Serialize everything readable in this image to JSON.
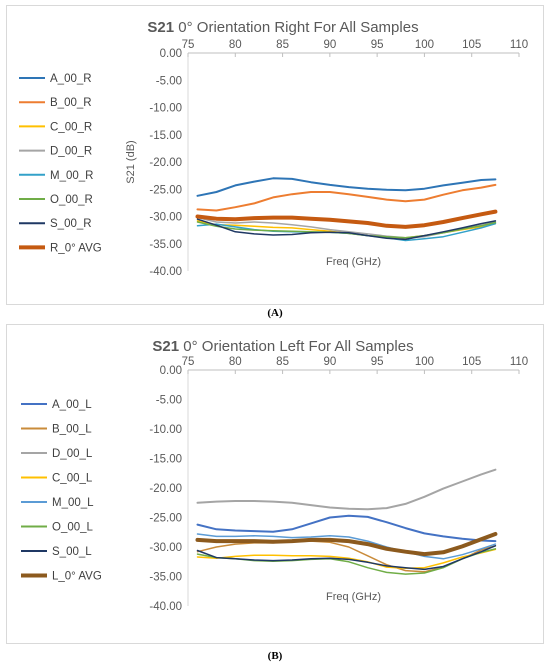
{
  "chart_data": [
    {
      "type": "line",
      "title_bold": "S21",
      "title_rest": " 0° Orientation Right For All Samples",
      "xlabel": "Freq (GHz)",
      "ylabel": "S21 (dB)",
      "xlim": [
        75,
        110
      ],
      "ylim": [
        -40,
        0
      ],
      "xticks": [
        "75",
        "80",
        "85",
        "90",
        "95",
        "100",
        "105",
        "110"
      ],
      "yticks": [
        "0.00",
        "-5.00",
        "-10.00",
        "-15.00",
        "-20.00",
        "-25.00",
        "-30.00",
        "-35.00",
        "-40.00"
      ],
      "grid": false,
      "legend_position": "left",
      "caption": "(A)",
      "series": [
        {
          "name": "A_00_R",
          "color": "#2e75b6",
          "width": 2,
          "x": [
            76,
            78,
            80,
            82,
            84,
            86,
            88,
            90,
            92,
            94,
            96,
            98,
            100,
            102,
            104,
            106,
            107.5
          ],
          "values": [
            -26.2,
            -25.5,
            -24.3,
            -23.6,
            -23.0,
            -23.1,
            -23.7,
            -24.2,
            -24.6,
            -24.9,
            -25.1,
            -25.2,
            -24.9,
            -24.3,
            -23.8,
            -23.3,
            -23.2
          ]
        },
        {
          "name": "B_00_R",
          "color": "#ed7d31",
          "width": 2,
          "x": [
            76,
            78,
            80,
            82,
            84,
            86,
            88,
            90,
            92,
            94,
            96,
            98,
            100,
            102,
            104,
            106,
            107.5
          ],
          "values": [
            -28.7,
            -28.9,
            -28.3,
            -27.6,
            -26.5,
            -25.9,
            -25.5,
            -25.5,
            -25.9,
            -26.4,
            -26.9,
            -27.2,
            -26.9,
            -26.0,
            -25.2,
            -24.7,
            -24.2
          ]
        },
        {
          "name": "C_00_R",
          "color": "#ffc000",
          "width": 1.5,
          "x": [
            76,
            78,
            80,
            82,
            84,
            86,
            88,
            90,
            92,
            94,
            96,
            98,
            100,
            102,
            104,
            106,
            107.5
          ],
          "values": [
            -30.8,
            -31.5,
            -31.6,
            -31.8,
            -32.0,
            -32.1,
            -32.4,
            -32.7,
            -33.1,
            -33.5,
            -33.8,
            -33.9,
            -33.5,
            -33.0,
            -32.4,
            -31.9,
            -31.3
          ]
        },
        {
          "name": "D_00_R",
          "color": "#a5a5a5",
          "width": 1.5,
          "x": [
            76,
            78,
            80,
            82,
            84,
            86,
            88,
            90,
            92,
            94,
            96,
            98,
            100,
            102,
            104,
            106,
            107.5
          ],
          "values": [
            -30.2,
            -31.0,
            -31.2,
            -31.0,
            -31.2,
            -31.5,
            -31.9,
            -32.4,
            -32.8,
            -33.2,
            -33.6,
            -33.9,
            -33.7,
            -33.0,
            -32.3,
            -31.6,
            -31.0
          ]
        },
        {
          "name": "M_00_R",
          "color": "#33a1c9",
          "width": 1.5,
          "x": [
            76,
            78,
            80,
            82,
            84,
            86,
            88,
            90,
            92,
            94,
            96,
            98,
            100,
            102,
            104,
            106,
            107.5
          ],
          "values": [
            -31.7,
            -31.4,
            -31.9,
            -32.4,
            -32.7,
            -32.8,
            -32.9,
            -32.9,
            -33.1,
            -33.5,
            -33.9,
            -34.4,
            -34.1,
            -33.7,
            -32.9,
            -32.1,
            -31.3
          ]
        },
        {
          "name": "O_00_R",
          "color": "#70ad47",
          "width": 1.5,
          "x": [
            76,
            78,
            80,
            82,
            84,
            86,
            88,
            90,
            92,
            94,
            96,
            98,
            100,
            102,
            104,
            106,
            107.5
          ],
          "values": [
            -31.0,
            -31.8,
            -32.3,
            -32.5,
            -32.6,
            -32.7,
            -32.8,
            -32.9,
            -33.1,
            -33.5,
            -33.7,
            -33.9,
            -33.5,
            -33.0,
            -32.3,
            -31.7,
            -31.1
          ]
        },
        {
          "name": "S_00_R",
          "color": "#1f3864",
          "width": 1.5,
          "x": [
            76,
            78,
            80,
            82,
            84,
            86,
            88,
            90,
            92,
            94,
            96,
            98,
            100,
            102,
            104,
            106,
            107.5
          ],
          "values": [
            -30.5,
            -31.6,
            -32.8,
            -33.2,
            -33.4,
            -33.3,
            -33.0,
            -32.9,
            -33.0,
            -33.5,
            -34.0,
            -34.2,
            -33.5,
            -32.8,
            -32.1,
            -31.3,
            -30.8
          ]
        },
        {
          "name": "R_0° AVG",
          "color": "#c55a11",
          "width": 4,
          "x": [
            76,
            78,
            80,
            82,
            84,
            86,
            88,
            90,
            92,
            94,
            96,
            98,
            100,
            102,
            104,
            106,
            107.5
          ],
          "values": [
            -30.0,
            -30.4,
            -30.5,
            -30.3,
            -30.2,
            -30.2,
            -30.4,
            -30.6,
            -30.9,
            -31.2,
            -31.7,
            -31.9,
            -31.6,
            -31.0,
            -30.3,
            -29.6,
            -29.1
          ]
        }
      ]
    },
    {
      "type": "line",
      "title_bold": "S21",
      "title_rest": " 0° Orientation Left For All Samples",
      "xlabel": "Freq (GHz)",
      "ylabel": "",
      "xlim": [
        75,
        110
      ],
      "ylim": [
        -40,
        0
      ],
      "xticks": [
        "75",
        "80",
        "85",
        "90",
        "95",
        "100",
        "105",
        "110"
      ],
      "yticks": [
        "0.00",
        "-5.00",
        "-10.00",
        "-15.00",
        "-20.00",
        "-25.00",
        "-30.00",
        "-35.00",
        "-40.00"
      ],
      "grid": false,
      "legend_position": "left",
      "caption": "(B)",
      "series": [
        {
          "name": "A_00_L",
          "color": "#4472c4",
          "width": 2,
          "x": [
            76,
            78,
            80,
            82,
            84,
            86,
            88,
            90,
            92,
            94,
            96,
            98,
            100,
            102,
            104,
            106,
            107.5
          ],
          "values": [
            -26.2,
            -27.0,
            -27.2,
            -27.3,
            -27.4,
            -27.0,
            -26.0,
            -25.0,
            -24.7,
            -24.9,
            -25.8,
            -26.8,
            -27.7,
            -28.2,
            -28.6,
            -28.9,
            -29.0
          ]
        },
        {
          "name": "B_00_L",
          "color": "#c98b3a",
          "width": 1.5,
          "x": [
            76,
            78,
            80,
            82,
            84,
            86,
            88,
            90,
            92,
            94,
            96,
            98,
            100,
            102,
            104,
            106,
            107.5
          ],
          "values": [
            -30.8,
            -30.0,
            -29.5,
            -29.3,
            -29.3,
            -29.1,
            -29.0,
            -29.2,
            -30.0,
            -31.5,
            -33.0,
            -34.0,
            -34.2,
            -33.4,
            -32.0,
            -30.5,
            -29.8
          ]
        },
        {
          "name": "D_00_L",
          "color": "#a5a5a5",
          "width": 2,
          "x": [
            76,
            78,
            80,
            82,
            84,
            86,
            88,
            90,
            92,
            94,
            96,
            98,
            100,
            102,
            104,
            106,
            107.5
          ],
          "values": [
            -22.5,
            -22.3,
            -22.2,
            -22.2,
            -22.3,
            -22.5,
            -22.9,
            -23.3,
            -23.5,
            -23.6,
            -23.4,
            -22.7,
            -21.5,
            -20.1,
            -18.9,
            -17.7,
            -16.9
          ]
        },
        {
          "name": "C_00_L",
          "color": "#ffc000",
          "width": 1.5,
          "x": [
            76,
            78,
            80,
            82,
            84,
            86,
            88,
            90,
            92,
            94,
            96,
            98,
            100,
            102,
            104,
            106,
            107.5
          ],
          "values": [
            -31.7,
            -31.9,
            -31.6,
            -31.4,
            -31.4,
            -31.5,
            -31.5,
            -31.6,
            -31.9,
            -32.5,
            -33.4,
            -33.6,
            -33.5,
            -32.7,
            -31.7,
            -31.0,
            -30.4
          ]
        },
        {
          "name": "M_00_L",
          "color": "#5b9bd5",
          "width": 1.5,
          "x": [
            76,
            78,
            80,
            82,
            84,
            86,
            88,
            90,
            92,
            94,
            96,
            98,
            100,
            102,
            104,
            106,
            107.5
          ],
          "values": [
            -27.8,
            -28.2,
            -28.2,
            -28.1,
            -28.2,
            -28.4,
            -28.3,
            -28.1,
            -28.3,
            -29.0,
            -30.0,
            -30.8,
            -31.6,
            -32.0,
            -31.3,
            -30.3,
            -29.5
          ]
        },
        {
          "name": "O_00_L",
          "color": "#70ad47",
          "width": 1.5,
          "x": [
            76,
            78,
            80,
            82,
            84,
            86,
            88,
            90,
            92,
            94,
            96,
            98,
            100,
            102,
            104,
            106,
            107.5
          ],
          "values": [
            -31.2,
            -31.8,
            -32.0,
            -32.3,
            -32.4,
            -32.3,
            -32.1,
            -32.0,
            -32.5,
            -33.5,
            -34.3,
            -34.6,
            -34.4,
            -33.5,
            -32.0,
            -30.9,
            -30.3
          ]
        },
        {
          "name": "S_00_L",
          "color": "#1f3864",
          "width": 1.5,
          "x": [
            76,
            78,
            80,
            82,
            84,
            86,
            88,
            90,
            92,
            94,
            96,
            98,
            100,
            102,
            104,
            106,
            107.5
          ],
          "values": [
            -30.6,
            -31.8,
            -32.0,
            -32.2,
            -32.3,
            -32.2,
            -32.0,
            -31.9,
            -32.1,
            -32.6,
            -33.2,
            -33.5,
            -33.8,
            -33.3,
            -32.0,
            -30.8,
            -29.8
          ]
        },
        {
          "name": "L_0° AVG",
          "color": "#8c5a1e",
          "width": 4,
          "x": [
            76,
            78,
            80,
            82,
            84,
            86,
            88,
            90,
            92,
            94,
            96,
            98,
            100,
            102,
            104,
            106,
            107.5
          ],
          "values": [
            -28.8,
            -29.0,
            -29.0,
            -29.0,
            -29.1,
            -29.0,
            -28.8,
            -28.8,
            -29.0,
            -29.5,
            -30.3,
            -30.8,
            -31.2,
            -30.9,
            -29.9,
            -28.7,
            -27.8
          ]
        }
      ]
    }
  ]
}
